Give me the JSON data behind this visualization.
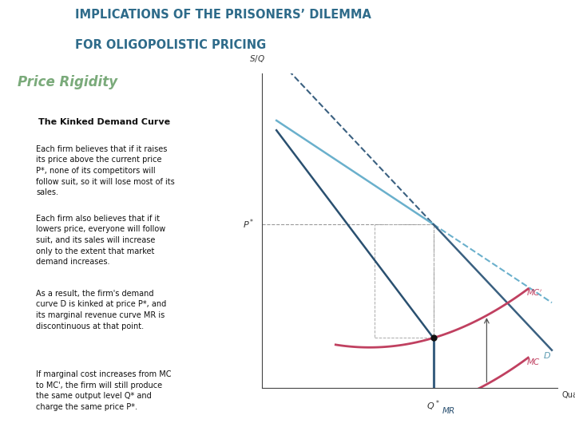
{
  "title_line1": "IMPLICATIONS OF THE PRISONERS’ DILEMMA",
  "title_line2": "FOR OLIGOPOLISTIC PRICING",
  "subtitle": "Price Rigidity",
  "box_title": "The Kinked Demand Curve",
  "para1": "Each firm believes that if it raises\nits price above the current price\nP*, none of its competitors will\nfollow suit, so it will lose most of its\nsales.",
  "para2": "Each firm also believes that if it\nlowers price, everyone will follow\nsuit, and its sales will increase\nonly to the extent that market\ndemand increases.",
  "para3": "As a result, the firm's demand\ncurve D is kinked at price P*, and\nits marginal revenue curve MR is\ndiscontinuous at that point.",
  "para4": "If marginal cost increases from MC\nto MC', the firm will still produce\nthe same output level Q* and\ncharge the same price P*.",
  "title_color": "#2e6b8a",
  "subtitle_color": "#7aaa7a",
  "box_bg_color": "#ddd8e8",
  "box_title_color": "#111111",
  "text_color": "#111111",
  "bg_color": "#ffffff",
  "chart_bg_color": "#ffffff",
  "demand_upper_color": "#6ab0cc",
  "demand_lower_color": "#3a6080",
  "MR_color": "#2a5070",
  "MC_color": "#c04060",
  "D_label_color": "#5a9ab0",
  "dashed_color": "#aaaaaa"
}
